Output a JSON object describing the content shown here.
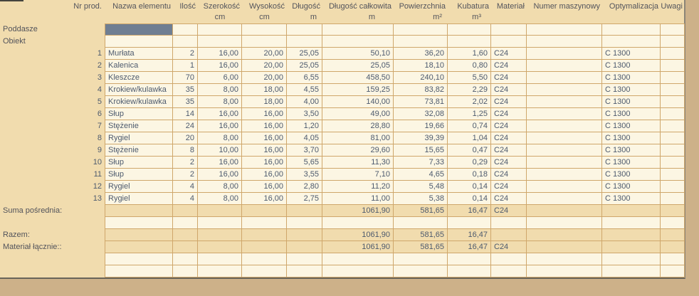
{
  "table": {
    "header": {
      "col_nr": "Nr prod.",
      "columns": [
        {
          "key": "nazwa-elementu",
          "label": "Nazwa elementu",
          "unit": ""
        },
        {
          "key": "ilosc",
          "label": "Ilość",
          "unit": ""
        },
        {
          "key": "szerokosc",
          "label": "Szerokość",
          "unit": "cm"
        },
        {
          "key": "wysokosc",
          "label": "Wysokość",
          "unit": "cm"
        },
        {
          "key": "dlugosc",
          "label": "Długość",
          "unit": "m"
        },
        {
          "key": "dlugosc-calkowita",
          "label": "Długość całkowita",
          "unit": "m"
        },
        {
          "key": "powierzchnia",
          "label": "Powierzchnia",
          "unit": "m²"
        },
        {
          "key": "kubatura",
          "label": "Kubatura",
          "unit": "m³"
        },
        {
          "key": "material",
          "label": "Materiał",
          "unit": ""
        },
        {
          "key": "numer-maszynowy",
          "label": "Numer maszynowy",
          "unit": ""
        },
        {
          "key": "optymalizacja",
          "label": "Optymalizacja",
          "unit": ""
        },
        {
          "key": "uwagi",
          "label": "Uwagi",
          "unit": ""
        }
      ]
    },
    "rows": [
      {
        "type": "section",
        "label": "Poddasze",
        "selected_cell": 0,
        "cells": [
          "",
          "",
          "",
          "",
          "",
          "",
          "",
          "",
          "",
          "",
          "",
          ""
        ]
      },
      {
        "type": "section",
        "label": "Obiekt",
        "cells": [
          "",
          "",
          "",
          "",
          "",
          "",
          "",
          "",
          "",
          "",
          "",
          ""
        ]
      },
      {
        "type": "data",
        "nr": "1",
        "cells": [
          "Murłata",
          "2",
          "16,00",
          "20,00",
          "25,05",
          "50,10",
          "36,20",
          "1,60",
          "C24",
          "",
          "C 1300",
          ""
        ]
      },
      {
        "type": "data",
        "nr": "2",
        "cells": [
          "Kalenica",
          "1",
          "16,00",
          "20,00",
          "25,05",
          "25,05",
          "18,10",
          "0,80",
          "C24",
          "",
          "C 1300",
          ""
        ]
      },
      {
        "type": "data",
        "nr": "3",
        "cells": [
          "Kleszcze",
          "70",
          "6,00",
          "20,00",
          "6,55",
          "458,50",
          "240,10",
          "5,50",
          "C24",
          "",
          "C 1300",
          ""
        ]
      },
      {
        "type": "data",
        "nr": "4",
        "cells": [
          "Krokiew/kulawka",
          "35",
          "8,00",
          "18,00",
          "4,55",
          "159,25",
          "83,82",
          "2,29",
          "C24",
          "",
          "C 1300",
          ""
        ]
      },
      {
        "type": "data",
        "nr": "5",
        "cells": [
          "Krokiew/kulawka",
          "35",
          "8,00",
          "18,00",
          "4,00",
          "140,00",
          "73,81",
          "2,02",
          "C24",
          "",
          "C 1300",
          ""
        ]
      },
      {
        "type": "data",
        "nr": "6",
        "cells": [
          "Słup",
          "14",
          "16,00",
          "16,00",
          "3,50",
          "49,00",
          "32,08",
          "1,25",
          "C24",
          "",
          "C 1300",
          ""
        ]
      },
      {
        "type": "data",
        "nr": "7",
        "cells": [
          "Stężenie",
          "24",
          "16,00",
          "16,00",
          "1,20",
          "28,80",
          "19,66",
          "0,74",
          "C24",
          "",
          "C 1300",
          ""
        ]
      },
      {
        "type": "data",
        "nr": "8",
        "cells": [
          "Rygiel",
          "20",
          "8,00",
          "16,00",
          "4,05",
          "81,00",
          "39,39",
          "1,04",
          "C24",
          "",
          "C 1300",
          ""
        ]
      },
      {
        "type": "data",
        "nr": "9",
        "cells": [
          "Stężenie",
          "8",
          "10,00",
          "16,00",
          "3,70",
          "29,60",
          "15,65",
          "0,47",
          "C24",
          "",
          "C 1300",
          ""
        ]
      },
      {
        "type": "data",
        "nr": "10",
        "cells": [
          "Słup",
          "2",
          "16,00",
          "16,00",
          "5,65",
          "11,30",
          "7,33",
          "0,29",
          "C24",
          "",
          "C 1300",
          ""
        ]
      },
      {
        "type": "data",
        "nr": "11",
        "cells": [
          "Słup",
          "2",
          "16,00",
          "16,00",
          "3,55",
          "7,10",
          "4,65",
          "0,18",
          "C24",
          "",
          "C 1300",
          ""
        ]
      },
      {
        "type": "data",
        "nr": "12",
        "cells": [
          "Rygiel",
          "4",
          "8,00",
          "16,00",
          "2,80",
          "11,20",
          "5,48",
          "0,14",
          "C24",
          "",
          "C 1300",
          ""
        ]
      },
      {
        "type": "data",
        "nr": "13",
        "cells": [
          "Rygiel",
          "4",
          "8,00",
          "16,00",
          "2,75",
          "11,00",
          "5,38",
          "0,14",
          "C24",
          "",
          "C 1300",
          ""
        ]
      },
      {
        "type": "summary",
        "label": "Suma pośrednia:",
        "cells": [
          "",
          "",
          "",
          "",
          "",
          "1061,90",
          "581,65",
          "16,47",
          "C24",
          "",
          "",
          ""
        ]
      },
      {
        "type": "empty",
        "cells": [
          "",
          "",
          "",
          "",
          "",
          "",
          "",
          "",
          "",
          "",
          "",
          ""
        ]
      },
      {
        "type": "summary",
        "label": "Razem:",
        "cells": [
          "",
          "",
          "",
          "",
          "",
          "1061,90",
          "581,65",
          "16,47",
          "",
          "",
          "",
          ""
        ]
      },
      {
        "type": "summary",
        "label": "Materiał łącznie::",
        "cells": [
          "",
          "",
          "",
          "",
          "",
          "1061,90",
          "581,65",
          "16,47",
          "C24",
          "",
          "",
          ""
        ]
      },
      {
        "type": "empty",
        "cells": [
          "",
          "",
          "",
          "",
          "",
          "",
          "",
          "",
          "",
          "",
          "",
          ""
        ]
      },
      {
        "type": "empty",
        "cells": [
          "",
          "",
          "",
          "",
          "",
          "",
          "",
          "",
          "",
          "",
          "",
          ""
        ]
      }
    ]
  },
  "colors": {
    "page_tan": "#f1dcae",
    "cell_cream": "#fcf6e3",
    "grid_line": "#cfa76b",
    "outer_brown": "#cdb189",
    "selected_cell": "#6f7e92",
    "panel_edge_right": "#8b8577",
    "panel_edge_bottom": "#696459",
    "text_data": "#4d5a6e",
    "text_label": "#52535b"
  }
}
